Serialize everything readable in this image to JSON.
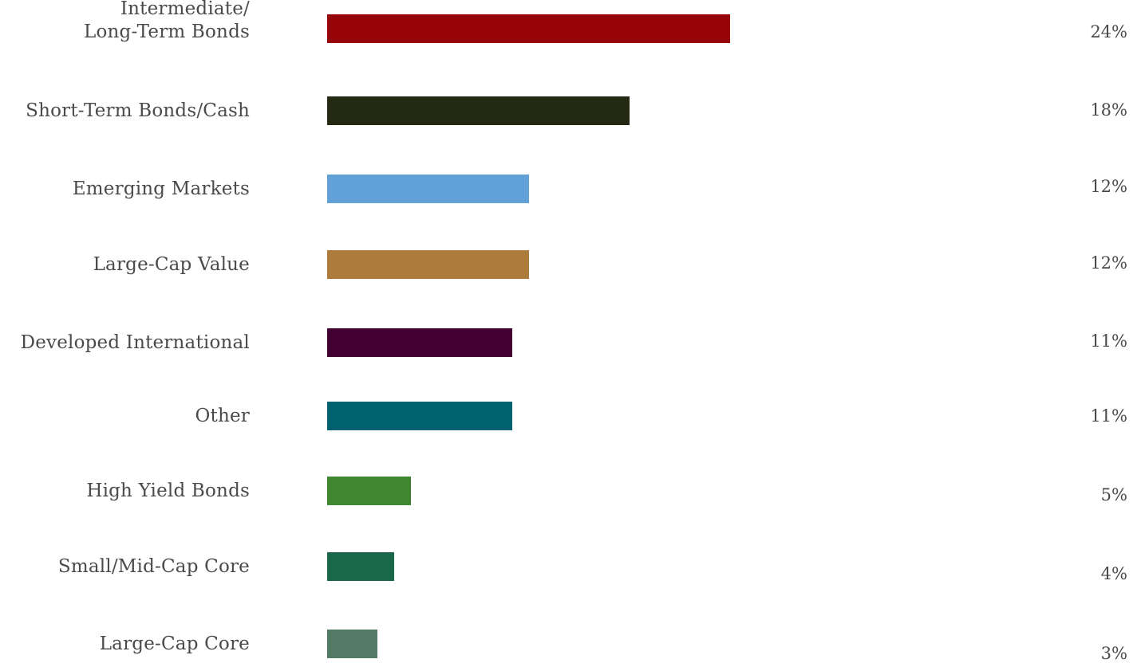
{
  "chart_data": {
    "type": "bar",
    "orientation": "horizontal",
    "categories": [
      "Intermediate/\nLong-Term Bonds",
      "Short-Term Bonds/Cash",
      "Emerging Markets",
      "Large-Cap Value",
      "Developed International",
      "Other",
      "High Yield Bonds",
      "Small/Mid-Cap Core",
      "Large-Cap Core"
    ],
    "values": [
      24,
      18,
      12,
      12,
      11,
      11,
      5,
      4,
      3
    ],
    "value_labels": [
      "24%",
      "18%",
      "12%",
      "12%",
      "11%",
      "11%",
      "5%",
      "4%",
      "3%"
    ],
    "colors": [
      "#960309",
      "#232913",
      "#62a1d8",
      "#ad7b3c",
      "#420033",
      "#00626f",
      "#3f862f",
      "#186849",
      "#537a64"
    ],
    "xlim": [
      0,
      30
    ],
    "grid": false,
    "legend": "none"
  }
}
